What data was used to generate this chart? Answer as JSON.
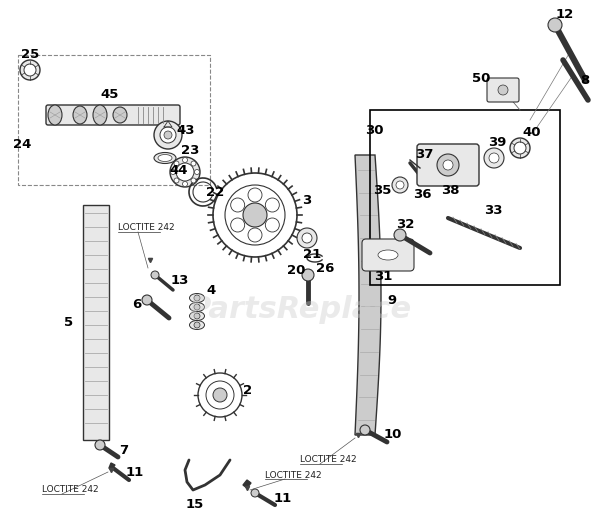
{
  "bg_color": "#ffffff",
  "lc": "#333333",
  "fc_light": "#e8e8e8",
  "fc_mid": "#cccccc",
  "fc_dark": "#aaaaaa",
  "watermark": "PartsReplace",
  "wm_color": "#cccccc",
  "loctite": "LOCTITE 242",
  "loctite_fs": 6.5,
  "label_fs": 9.5,
  "fig_w": 6.0,
  "fig_h": 5.3,
  "dpi": 100
}
